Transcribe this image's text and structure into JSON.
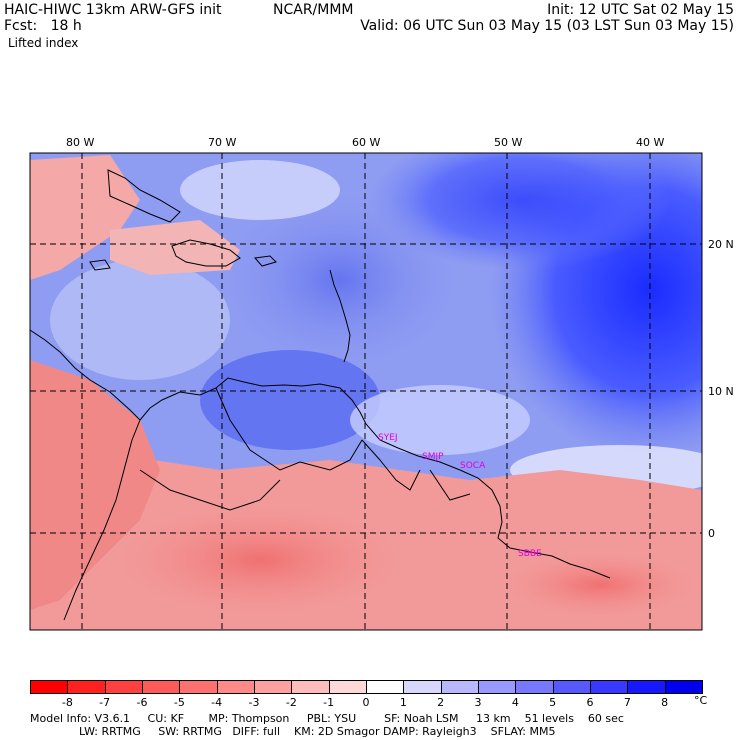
{
  "header": {
    "title": "HAIC-HIWC 13km ARW-GFS init",
    "org": "NCAR/MMM",
    "init": "Init: 12 UTC Sat 02 May 15",
    "fcst": "Fcst:   18 h",
    "valid": "Valid: 06 UTC Sun 03 May 15 (03 LST Sun 03 May 15)",
    "field": "Lifted index"
  },
  "map": {
    "lon_labels": [
      "80 W",
      "70 W",
      "60 W",
      "50 W",
      "40 W"
    ],
    "lat_labels": [
      "20 N",
      "10 N",
      "0"
    ],
    "stations": [
      "SYEJ",
      "SMJP",
      "SOCA",
      "SBBE"
    ]
  },
  "colorbar": {
    "labels": [
      "-8",
      "-7",
      "-6",
      "-5",
      "-4",
      "-3",
      "-2",
      "-1",
      "0",
      "1",
      "2",
      "3",
      "4",
      "5",
      "6",
      "7",
      "8"
    ],
    "unit": "°C",
    "colors": [
      "#ff0000",
      "#ff2020",
      "#ff4040",
      "#ff5a5a",
      "#ff7070",
      "#ff8888",
      "#ffa0a0",
      "#ffbcbc",
      "#ffd8d8",
      "#ffffff",
      "#d8d8ff",
      "#b8b8ff",
      "#9898ff",
      "#7878ff",
      "#5858ff",
      "#3838ff",
      "#1818ff",
      "#0000ee"
    ]
  },
  "footer": {
    "line1": "Model Info: V3.6.1     CU: KF       MP: Thompson     PBL: YSU        SF: Noah LSM     13 km    51 levels    60 sec",
    "line2": "              LW: RRTMG     SW: RRTMG   DIFF: full    KM: 2D Smagor DAMP: Rayleigh3    SFLAY: MM5"
  }
}
